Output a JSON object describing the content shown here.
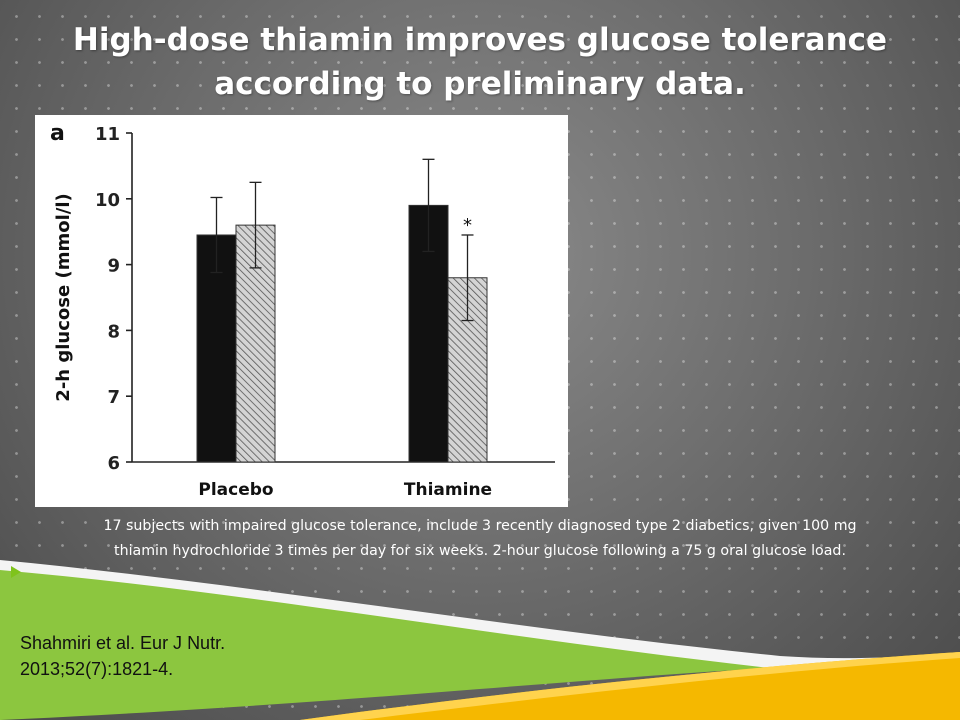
{
  "slide": {
    "title_lines": [
      "High-dose thiamin improves glucose tolerance",
      "according to preliminary data."
    ],
    "caption_lines": [
      "17 subjects with impaired glucose tolerance, include 3 recently diagnosed type 2 diabetics, given 100 mg",
      "thiamin hydrochloride 3 times per day for six weeks. 2-hour glucose following a 75 g oral glucose load."
    ],
    "citation_lines": [
      "Shahmiri et al. Eur J Nutr.",
      "2013;52(7):1821-4."
    ],
    "colors": {
      "green": "#7fc31c",
      "yellow": "#f5b800",
      "bar_solid": "#111111",
      "bar_hatch": "#9a9a9a"
    }
  },
  "chart_data": {
    "type": "bar",
    "panel_label": "a",
    "title": "",
    "xlabel": "",
    "ylabel": "2-h glucose (mmol/l)",
    "ylim": [
      6,
      11
    ],
    "yticks": [
      6,
      7,
      8,
      9,
      10,
      11
    ],
    "categories": [
      "Placebo",
      "Thiamine"
    ],
    "series": [
      {
        "style": "solid",
        "values": [
          9.45,
          9.9
        ],
        "errors": [
          0.57,
          0.7
        ]
      },
      {
        "style": "hatched",
        "values": [
          9.6,
          8.8
        ],
        "errors": [
          0.65,
          0.65
        ]
      }
    ],
    "annotations": [
      {
        "category": "Thiamine",
        "series_index": 1,
        "text": "*"
      }
    ],
    "grid": false,
    "legend": "none"
  }
}
